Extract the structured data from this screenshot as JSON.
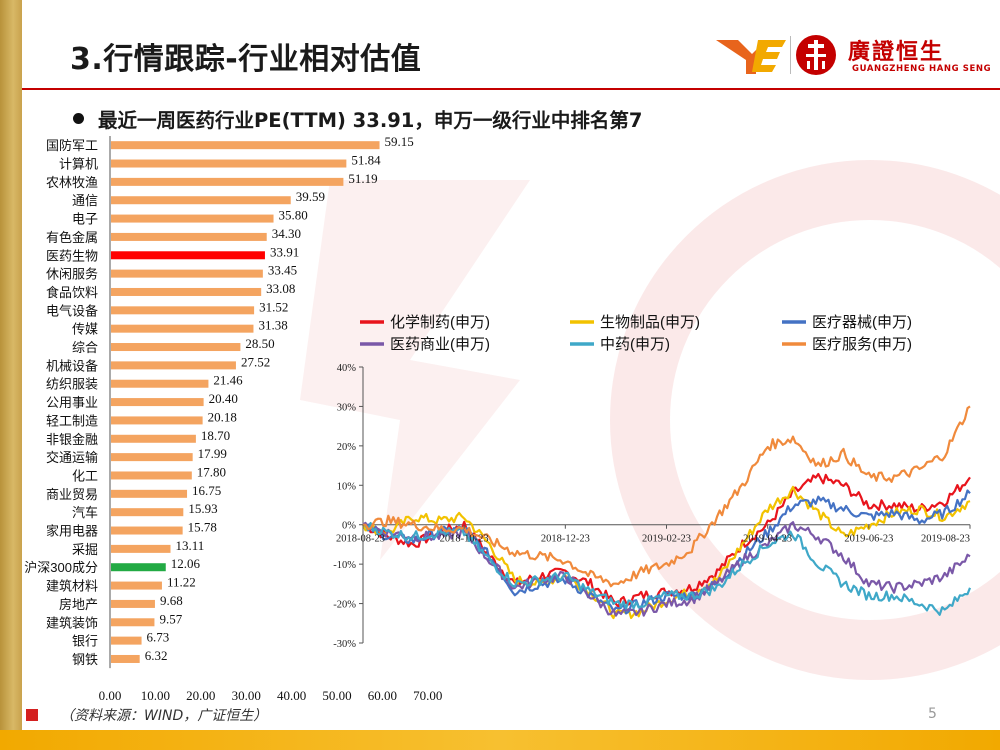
{
  "header": {
    "title": "3.行情跟踪-行业相对估值",
    "logo_cn": "廣證恒生",
    "logo_en": "GUANGZHENG HANG SENG"
  },
  "subtitle": "最近一周医药行业PE(TTM) 33.91，申万一级行业中排名第7",
  "footer": {
    "source": "（资料来源：WIND，广证恒生）",
    "page_number": "5"
  },
  "colors": {
    "accent_red": "#c40000",
    "bar_default": "#f4a460",
    "bar_highlight": "#ff0000",
    "bar_benchmark": "#22aa44"
  },
  "chart_data": [
    {
      "type": "bar",
      "orientation": "horizontal",
      "title": "",
      "categories": [
        "国防军工",
        "计算机",
        "农林牧渔",
        "通信",
        "电子",
        "有色金属",
        "医药生物",
        "休闲服务",
        "食品饮料",
        "电气设备",
        "传媒",
        "综合",
        "机械设备",
        "纺织服装",
        "公用事业",
        "轻工制造",
        "非银金融",
        "交通运输",
        "化工",
        "商业贸易",
        "汽车",
        "家用电器",
        "采掘",
        "沪深300成分",
        "建筑材料",
        "房地产",
        "建筑装饰",
        "银行",
        "钢铁"
      ],
      "values": [
        59.15,
        51.84,
        51.19,
        39.59,
        35.8,
        34.3,
        33.91,
        33.45,
        33.08,
        31.52,
        31.38,
        28.5,
        27.52,
        21.46,
        20.4,
        20.18,
        18.7,
        17.99,
        17.8,
        16.75,
        15.93,
        15.78,
        13.11,
        12.06,
        11.22,
        9.68,
        9.57,
        6.73,
        6.32
      ],
      "value_labels": [
        "59.15",
        "51.84",
        "51.19",
        "39.59",
        "35.80",
        "34.30",
        "33.91",
        "33.45",
        "33.08",
        "31.52",
        "31.38",
        "28.50",
        "27.52",
        "21.46",
        "20.40",
        "20.18",
        "18.70",
        "17.99",
        "17.80",
        "16.75",
        "15.93",
        "15.78",
        "13.11",
        "12.06",
        "11.22",
        "9.68",
        "9.57",
        "6.73",
        "6.32"
      ],
      "highlight": {
        "医药生物": "#ff0000",
        "沪深300成分": "#22aa44"
      },
      "xlim": [
        0,
        70
      ],
      "xticks": [
        "0.00",
        "10.00",
        "20.00",
        "30.00",
        "40.00",
        "50.00",
        "60.00",
        "70.00"
      ]
    },
    {
      "type": "line",
      "title": "",
      "ylim": [
        -30,
        40
      ],
      "yticks": [
        "40%",
        "30%",
        "20%",
        "10%",
        "0%",
        "-10%",
        "-20%",
        "-30%"
      ],
      "xticks": [
        "2018-08-23",
        "2018-10-23",
        "2018-12-23",
        "2019-02-23",
        "2019-04-23",
        "2019-06-23",
        "2019-08-23"
      ],
      "x_range_months": [
        0,
        12
      ],
      "legend": [
        "化学制药(申万)",
        "生物制品(申万)",
        "医疗器械(申万)",
        "医药商业(申万)",
        "中药(申万)",
        "医疗服务(申万)"
      ],
      "series": [
        {
          "name": "化学制药(申万)",
          "color": "#e8141c",
          "points": [
            [
              0,
              0
            ],
            [
              0.5,
              -3
            ],
            [
              1,
              -5
            ],
            [
              1.5,
              -2
            ],
            [
              2,
              0
            ],
            [
              2.5,
              -8
            ],
            [
              3,
              -15
            ],
            [
              3.5,
              -13
            ],
            [
              4,
              -12
            ],
            [
              4.5,
              -15
            ],
            [
              5,
              -20
            ],
            [
              5.5,
              -18
            ],
            [
              6,
              -17
            ],
            [
              6.5,
              -16
            ],
            [
              7,
              -12
            ],
            [
              7.5,
              -5
            ],
            [
              8,
              0
            ],
            [
              8.5,
              8
            ],
            [
              9,
              12
            ],
            [
              9.5,
              10
            ],
            [
              10,
              5
            ],
            [
              10.5,
              5
            ],
            [
              11,
              4
            ],
            [
              11.5,
              6
            ],
            [
              12,
              12
            ]
          ]
        },
        {
          "name": "生物制品(申万)",
          "color": "#f2c200",
          "points": [
            [
              0,
              0
            ],
            [
              0.5,
              -2
            ],
            [
              1,
              2
            ],
            [
              1.5,
              1
            ],
            [
              2,
              2
            ],
            [
              2.5,
              -5
            ],
            [
              3,
              -14
            ],
            [
              3.5,
              -15
            ],
            [
              4,
              -13
            ],
            [
              4.5,
              -17
            ],
            [
              5,
              -23
            ],
            [
              5.5,
              -22
            ],
            [
              6,
              -19
            ],
            [
              6.5,
              -17
            ],
            [
              7,
              -14
            ],
            [
              7.5,
              -5
            ],
            [
              8,
              4
            ],
            [
              8.5,
              9
            ],
            [
              9,
              3
            ],
            [
              9.5,
              -3
            ],
            [
              10,
              0
            ],
            [
              10.5,
              3
            ],
            [
              11,
              4
            ],
            [
              11.5,
              2
            ],
            [
              12,
              6
            ]
          ]
        },
        {
          "name": "医疗器械(申万)",
          "color": "#4472c4",
          "points": [
            [
              0,
              0
            ],
            [
              0.5,
              -3
            ],
            [
              1,
              -4
            ],
            [
              1.5,
              -2
            ],
            [
              2,
              -1
            ],
            [
              2.5,
              -8
            ],
            [
              3,
              -17
            ],
            [
              3.5,
              -15
            ],
            [
              4,
              -14
            ],
            [
              4.5,
              -18
            ],
            [
              5,
              -22
            ],
            [
              5.5,
              -20
            ],
            [
              6,
              -18
            ],
            [
              6.5,
              -18
            ],
            [
              7,
              -15
            ],
            [
              7.5,
              -8
            ],
            [
              8,
              -2
            ],
            [
              8.5,
              5
            ],
            [
              9,
              6
            ],
            [
              9.5,
              4
            ],
            [
              10,
              2
            ],
            [
              10.5,
              3
            ],
            [
              11,
              1
            ],
            [
              11.5,
              3
            ],
            [
              12,
              8
            ]
          ]
        },
        {
          "name": "医药商业(申万)",
          "color": "#7a58a8",
          "points": [
            [
              0,
              0
            ],
            [
              0.5,
              -2
            ],
            [
              1,
              -3
            ],
            [
              1.5,
              -3
            ],
            [
              2,
              -2
            ],
            [
              2.5,
              -9
            ],
            [
              3,
              -16
            ],
            [
              3.5,
              -14
            ],
            [
              4,
              -13
            ],
            [
              4.5,
              -18
            ],
            [
              5,
              -23
            ],
            [
              5.5,
              -22
            ],
            [
              6,
              -20
            ],
            [
              6.5,
              -19
            ],
            [
              7,
              -15
            ],
            [
              7.5,
              -9
            ],
            [
              8,
              -5
            ],
            [
              8.5,
              0
            ],
            [
              9,
              -3
            ],
            [
              9.5,
              -8
            ],
            [
              10,
              -15
            ],
            [
              10.5,
              -16
            ],
            [
              11,
              -15
            ],
            [
              11.5,
              -13
            ],
            [
              12,
              -8
            ]
          ]
        },
        {
          "name": "中药(申万)",
          "color": "#3fa8c8",
          "points": [
            [
              0,
              0
            ],
            [
              0.5,
              -2
            ],
            [
              1,
              -3
            ],
            [
              1.5,
              -2
            ],
            [
              2,
              -2
            ],
            [
              2.5,
              -9
            ],
            [
              3,
              -15
            ],
            [
              3.5,
              -14
            ],
            [
              4,
              -13
            ],
            [
              4.5,
              -17
            ],
            [
              5,
              -20
            ],
            [
              5.5,
              -20
            ],
            [
              6,
              -18
            ],
            [
              6.5,
              -18
            ],
            [
              7,
              -16
            ],
            [
              7.5,
              -10
            ],
            [
              8,
              -5
            ],
            [
              8.5,
              -2
            ],
            [
              9,
              -10
            ],
            [
              9.5,
              -15
            ],
            [
              10,
              -18
            ],
            [
              10.5,
              -18
            ],
            [
              11,
              -20
            ],
            [
              11.5,
              -22
            ],
            [
              12,
              -16
            ]
          ]
        },
        {
          "name": "医疗服务(申万)",
          "color": "#f08a3c",
          "points": [
            [
              0,
              0
            ],
            [
              0.5,
              1
            ],
            [
              1,
              0
            ],
            [
              1.5,
              -1
            ],
            [
              2,
              -1
            ],
            [
              2.5,
              -4
            ],
            [
              3,
              -7
            ],
            [
              3.5,
              -8
            ],
            [
              4,
              -9
            ],
            [
              4.5,
              -13
            ],
            [
              5,
              -15
            ],
            [
              5.5,
              -12
            ],
            [
              6,
              -10
            ],
            [
              6.5,
              -6
            ],
            [
              7,
              2
            ],
            [
              7.5,
              10
            ],
            [
              8,
              20
            ],
            [
              8.5,
              22
            ],
            [
              9,
              15
            ],
            [
              9.5,
              18
            ],
            [
              10,
              12
            ],
            [
              10.5,
              12
            ],
            [
              11,
              14
            ],
            [
              11.5,
              18
            ],
            [
              12,
              30
            ]
          ]
        }
      ]
    }
  ]
}
